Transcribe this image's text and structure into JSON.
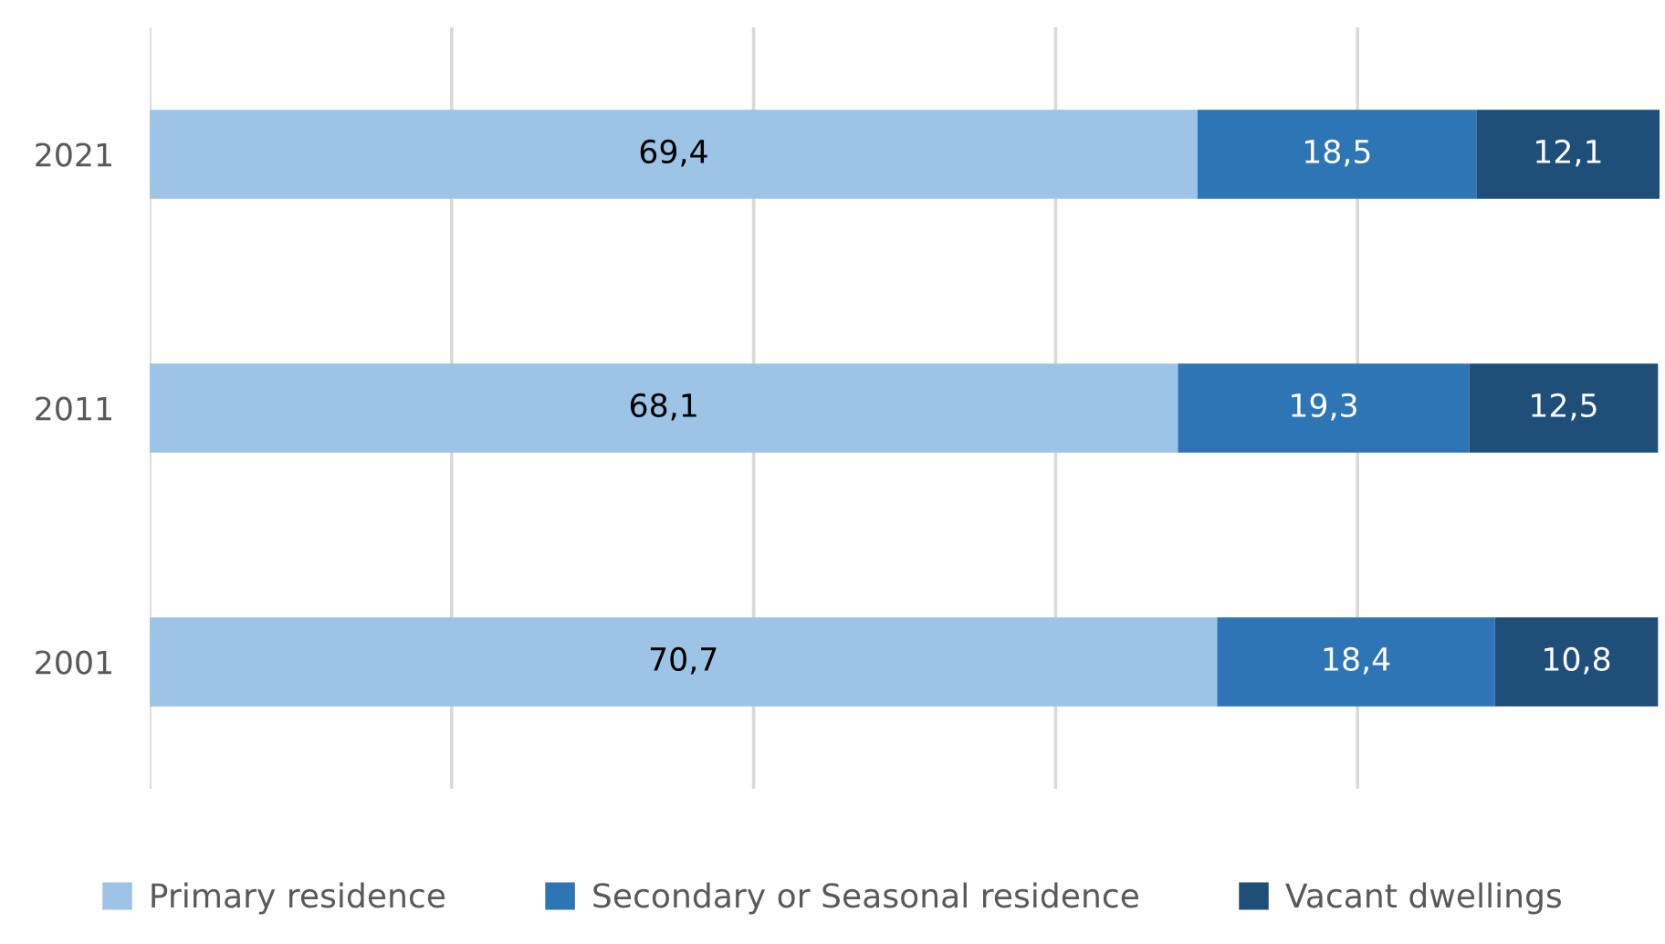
{
  "chart_data": {
    "type": "bar",
    "orientation": "horizontal",
    "stacked": true,
    "categories": [
      "2021",
      "2011",
      "2001"
    ],
    "series": [
      {
        "name": "Primary residence",
        "color": "#9dc3e6",
        "values": [
          69.4,
          68.1,
          70.7
        ],
        "value_labels": [
          "69,4",
          "68,1",
          "70,7"
        ]
      },
      {
        "name": "Secondary or Seasonal residence",
        "color": "#2e75b6",
        "values": [
          18.5,
          19.3,
          18.4
        ],
        "value_labels": [
          "18,5",
          "19,3",
          "18,4"
        ]
      },
      {
        "name": "Vacant dwellings",
        "color": "#1f4e79",
        "values": [
          12.1,
          12.5,
          10.8
        ],
        "value_labels": [
          "12,1",
          "12,5",
          "10,8"
        ]
      }
    ],
    "xlim": [
      0,
      100
    ],
    "xticks": [
      {
        "value": 0,
        "label": null
      },
      {
        "value": 20,
        "label": null
      },
      {
        "value": 40,
        "label": null
      },
      {
        "value": 60,
        "label": null
      },
      {
        "value": 80,
        "label": null
      }
    ],
    "grid": "x",
    "legend": "bottom",
    "tick_labels": "y"
  }
}
